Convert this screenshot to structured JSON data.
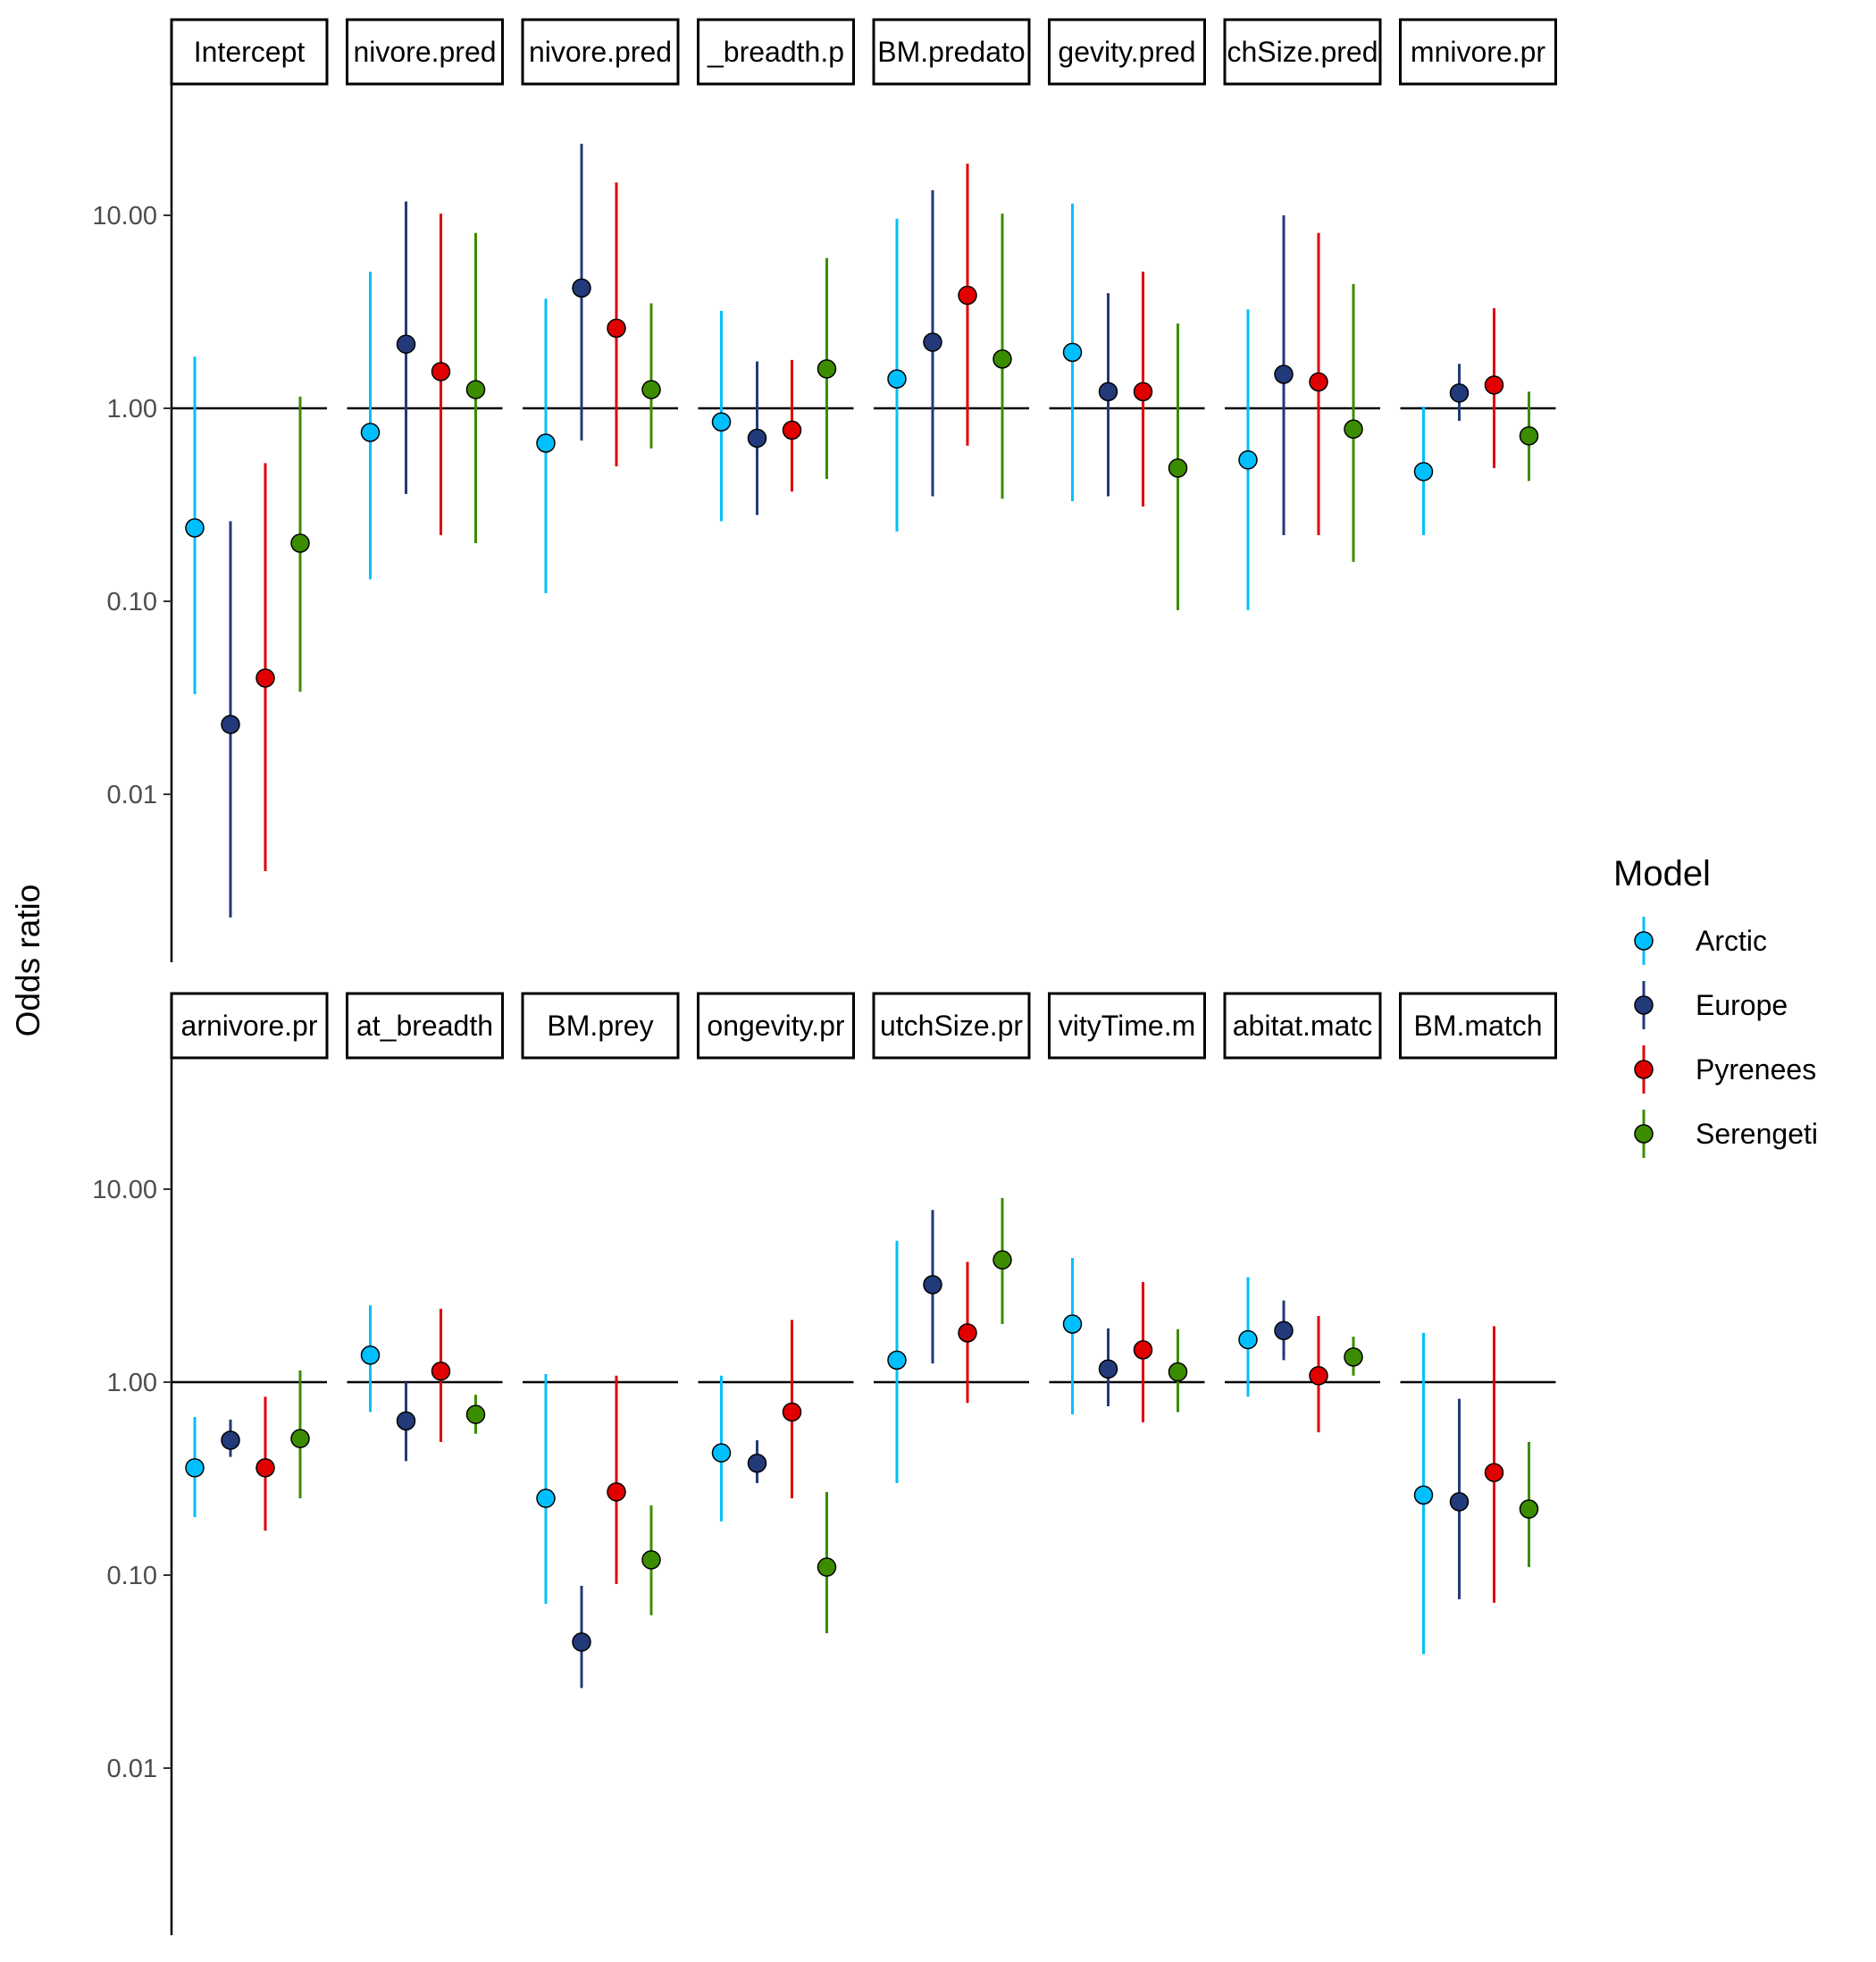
{
  "chart_data": {
    "type": "scatter",
    "ylabel": "Odds ratio",
    "yscale": "log10",
    "yticks": [
      "10.00",
      "1.00",
      "0.10",
      "0.01"
    ],
    "ytick_values": [
      10,
      1,
      0.1,
      0.01
    ],
    "ylim": [
      0.001,
      60
    ],
    "reference_line": 1,
    "grid": false,
    "legend": {
      "title": "Model",
      "position": "right"
    },
    "series": [
      {
        "name": "Arctic",
        "color": "#00BFFF"
      },
      {
        "name": "Europe",
        "color": "#223A7A"
      },
      {
        "name": "Pyrenees",
        "color": "#E00000"
      },
      {
        "name": "Serengeti",
        "color": "#3C8C00"
      }
    ],
    "panels": [
      {
        "label": "Intercept",
        "row": 0,
        "points": [
          {
            "series": "Arctic",
            "est": 0.24,
            "lo": 0.033,
            "hi": 1.85
          },
          {
            "series": "Europe",
            "est": 0.023,
            "lo": 0.0023,
            "hi": 0.26
          },
          {
            "series": "Pyrenees",
            "est": 0.04,
            "lo": 0.004,
            "hi": 0.52
          },
          {
            "series": "Serengeti",
            "est": 0.2,
            "lo": 0.034,
            "hi": 1.15
          }
        ]
      },
      {
        "label": "nivore.pred",
        "row": 0,
        "points": [
          {
            "series": "Arctic",
            "est": 0.75,
            "lo": 0.13,
            "hi": 5.1
          },
          {
            "series": "Europe",
            "est": 2.15,
            "lo": 0.36,
            "hi": 11.8
          },
          {
            "series": "Pyrenees",
            "est": 1.55,
            "lo": 0.22,
            "hi": 10.2
          },
          {
            "series": "Serengeti",
            "est": 1.25,
            "lo": 0.2,
            "hi": 8.1
          }
        ]
      },
      {
        "label": "nivore.pred",
        "row": 0,
        "points": [
          {
            "series": "Arctic",
            "est": 0.66,
            "lo": 0.11,
            "hi": 3.7
          },
          {
            "series": "Europe",
            "est": 4.2,
            "lo": 0.68,
            "hi": 23.5
          },
          {
            "series": "Pyrenees",
            "est": 2.6,
            "lo": 0.5,
            "hi": 14.8
          },
          {
            "series": "Serengeti",
            "est": 1.25,
            "lo": 0.62,
            "hi": 3.5
          }
        ]
      },
      {
        "label": "_breadth.p",
        "row": 0,
        "points": [
          {
            "series": "Arctic",
            "est": 0.85,
            "lo": 0.26,
            "hi": 3.2
          },
          {
            "series": "Europe",
            "est": 0.7,
            "lo": 0.28,
            "hi": 1.75
          },
          {
            "series": "Pyrenees",
            "est": 0.77,
            "lo": 0.37,
            "hi": 1.78
          },
          {
            "series": "Serengeti",
            "est": 1.6,
            "lo": 0.43,
            "hi": 6.0
          }
        ]
      },
      {
        "label": "BM.predato",
        "row": 0,
        "points": [
          {
            "series": "Arctic",
            "est": 1.42,
            "lo": 0.23,
            "hi": 9.6
          },
          {
            "series": "Europe",
            "est": 2.2,
            "lo": 0.35,
            "hi": 13.5
          },
          {
            "series": "Pyrenees",
            "est": 3.85,
            "lo": 0.64,
            "hi": 18.5
          },
          {
            "series": "Serengeti",
            "est": 1.8,
            "lo": 0.34,
            "hi": 10.2
          }
        ]
      },
      {
        "label": "gevity.pred",
        "row": 0,
        "points": [
          {
            "series": "Arctic",
            "est": 1.95,
            "lo": 0.33,
            "hi": 11.5
          },
          {
            "series": "Europe",
            "est": 1.22,
            "lo": 0.35,
            "hi": 3.95
          },
          {
            "series": "Pyrenees",
            "est": 1.22,
            "lo": 0.31,
            "hi": 5.1
          },
          {
            "series": "Serengeti",
            "est": 0.49,
            "lo": 0.09,
            "hi": 2.75
          }
        ]
      },
      {
        "label": "chSize.pred",
        "row": 0,
        "points": [
          {
            "series": "Arctic",
            "est": 0.54,
            "lo": 0.09,
            "hi": 3.25
          },
          {
            "series": "Europe",
            "est": 1.5,
            "lo": 0.22,
            "hi": 10.0
          },
          {
            "series": "Pyrenees",
            "est": 1.37,
            "lo": 0.22,
            "hi": 8.1
          },
          {
            "series": "Serengeti",
            "est": 0.78,
            "lo": 0.16,
            "hi": 4.4
          }
        ]
      },
      {
        "label": "mnivore.pr",
        "row": 0,
        "points": [
          {
            "series": "Arctic",
            "est": 0.47,
            "lo": 0.22,
            "hi": 1.02
          },
          {
            "series": "Europe",
            "est": 1.2,
            "lo": 0.86,
            "hi": 1.7
          },
          {
            "series": "Pyrenees",
            "est": 1.32,
            "lo": 0.49,
            "hi": 3.3
          },
          {
            "series": "Serengeti",
            "est": 0.72,
            "lo": 0.42,
            "hi": 1.22
          }
        ]
      },
      {
        "label": "arnivore.pr",
        "row": 1,
        "points": [
          {
            "series": "Arctic",
            "est": 0.36,
            "lo": 0.2,
            "hi": 0.66
          },
          {
            "series": "Europe",
            "est": 0.5,
            "lo": 0.41,
            "hi": 0.64
          },
          {
            "series": "Pyrenees",
            "est": 0.36,
            "lo": 0.17,
            "hi": 0.84
          },
          {
            "series": "Serengeti",
            "est": 0.51,
            "lo": 0.25,
            "hi": 1.15
          }
        ]
      },
      {
        "label": "at_breadth",
        "row": 1,
        "points": [
          {
            "series": "Arctic",
            "est": 1.38,
            "lo": 0.7,
            "hi": 2.5
          },
          {
            "series": "Europe",
            "est": 0.63,
            "lo": 0.39,
            "hi": 1.0
          },
          {
            "series": "Pyrenees",
            "est": 1.14,
            "lo": 0.49,
            "hi": 2.4
          },
          {
            "series": "Serengeti",
            "est": 0.68,
            "lo": 0.54,
            "hi": 0.86
          }
        ]
      },
      {
        "label": "BM.prey",
        "row": 1,
        "points": [
          {
            "series": "Arctic",
            "est": 0.25,
            "lo": 0.071,
            "hi": 1.1
          },
          {
            "series": "Europe",
            "est": 0.045,
            "lo": 0.026,
            "hi": 0.088
          },
          {
            "series": "Pyrenees",
            "est": 0.27,
            "lo": 0.09,
            "hi": 1.08
          },
          {
            "series": "Serengeti",
            "est": 0.12,
            "lo": 0.062,
            "hi": 0.23
          }
        ]
      },
      {
        "label": "ongevity.pr",
        "row": 1,
        "points": [
          {
            "series": "Arctic",
            "est": 0.43,
            "lo": 0.19,
            "hi": 1.08
          },
          {
            "series": "Europe",
            "est": 0.38,
            "lo": 0.3,
            "hi": 0.5
          },
          {
            "series": "Pyrenees",
            "est": 0.7,
            "lo": 0.25,
            "hi": 2.1
          },
          {
            "series": "Serengeti",
            "est": 0.11,
            "lo": 0.05,
            "hi": 0.27
          }
        ]
      },
      {
        "label": "utchSize.pr",
        "row": 1,
        "points": [
          {
            "series": "Arctic",
            "est": 1.3,
            "lo": 0.3,
            "hi": 5.4
          },
          {
            "series": "Europe",
            "est": 3.2,
            "lo": 1.25,
            "hi": 7.8
          },
          {
            "series": "Pyrenees",
            "est": 1.8,
            "lo": 0.78,
            "hi": 4.2
          },
          {
            "series": "Serengeti",
            "est": 4.3,
            "lo": 2.0,
            "hi": 9.0
          }
        ]
      },
      {
        "label": "vityTime.m",
        "row": 1,
        "points": [
          {
            "series": "Arctic",
            "est": 2.0,
            "lo": 0.68,
            "hi": 4.4
          },
          {
            "series": "Europe",
            "est": 1.17,
            "lo": 0.75,
            "hi": 1.9
          },
          {
            "series": "Pyrenees",
            "est": 1.47,
            "lo": 0.62,
            "hi": 3.3
          },
          {
            "series": "Serengeti",
            "est": 1.13,
            "lo": 0.7,
            "hi": 1.88
          }
        ]
      },
      {
        "label": "abitat.matc",
        "row": 1,
        "points": [
          {
            "series": "Arctic",
            "est": 1.66,
            "lo": 0.84,
            "hi": 3.5
          },
          {
            "series": "Europe",
            "est": 1.85,
            "lo": 1.3,
            "hi": 2.65
          },
          {
            "series": "Pyrenees",
            "est": 1.08,
            "lo": 0.55,
            "hi": 2.2
          },
          {
            "series": "Serengeti",
            "est": 1.35,
            "lo": 1.08,
            "hi": 1.72
          }
        ]
      },
      {
        "label": "BM.match",
        "row": 1,
        "points": [
          {
            "series": "Arctic",
            "est": 0.26,
            "lo": 0.039,
            "hi": 1.8
          },
          {
            "series": "Europe",
            "est": 0.24,
            "lo": 0.075,
            "hi": 0.82
          },
          {
            "series": "Pyrenees",
            "est": 0.34,
            "lo": 0.072,
            "hi": 1.95
          },
          {
            "series": "Serengeti",
            "est": 0.22,
            "lo": 0.11,
            "hi": 0.49
          }
        ]
      }
    ]
  }
}
